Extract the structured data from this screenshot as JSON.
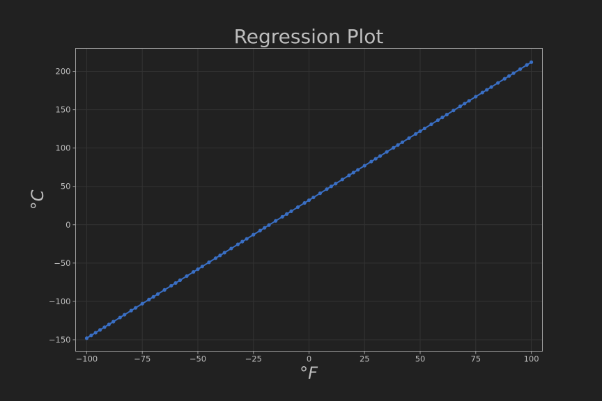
{
  "chart_data": {
    "type": "scatter",
    "title": "Regression Plot",
    "xlabel": "°F",
    "ylabel": "°C",
    "xlim": [
      -105,
      105
    ],
    "ylim": [
      -165,
      230
    ],
    "x_ticks": [
      -100,
      -75,
      -50,
      -25,
      0,
      25,
      50,
      75,
      100
    ],
    "x_tick_labels": [
      "−100",
      "−75",
      "−50",
      "−25",
      "0",
      "25",
      "50",
      "75",
      "100"
    ],
    "y_ticks": [
      -150,
      -100,
      -50,
      0,
      50,
      100,
      150,
      200
    ],
    "y_tick_labels": [
      "−150",
      "−100",
      "−50",
      "0",
      "50",
      "100",
      "150",
      "200"
    ],
    "grid": true,
    "colors": {
      "background": "#212121",
      "points": "#3a6fc4",
      "line": "#3a6fc4"
    },
    "series": [
      {
        "x": [
          -100,
          -98,
          -96,
          -94,
          -92,
          -90,
          -88,
          -85,
          -83,
          -80,
          -78,
          -75,
          -72,
          -70,
          -68,
          -65,
          -62,
          -60,
          -58,
          -55,
          -52,
          -50,
          -48,
          -45,
          -42,
          -40,
          -38,
          -35,
          -32,
          -30,
          -28,
          -25,
          -22,
          -20,
          -18,
          -15,
          -12,
          -10,
          -8,
          -5,
          -2,
          0,
          2,
          5,
          8,
          10,
          12,
          15,
          18,
          20,
          22,
          25,
          28,
          30,
          32,
          35,
          38,
          40,
          42,
          45,
          48,
          50,
          52,
          55,
          58,
          60,
          62,
          65,
          68,
          70,
          72,
          75,
          78,
          80,
          82,
          85,
          88,
          90,
          92,
          95,
          98,
          100
        ],
        "y": [
          -148,
          -144.4,
          -140.8,
          -137.2,
          -133.6,
          -130,
          -126.4,
          -121,
          -117.4,
          -112,
          -108.4,
          -103,
          -97.6,
          -94,
          -90.4,
          -85,
          -79.6,
          -76,
          -72.4,
          -67,
          -61.6,
          -58,
          -54.4,
          -49,
          -43.6,
          -40,
          -36.4,
          -31,
          -25.6,
          -22,
          -18.4,
          -13,
          -7.6,
          -4,
          -0.4,
          5,
          10.4,
          14,
          17.6,
          23,
          28.4,
          32,
          35.6,
          41,
          46.4,
          50,
          53.6,
          59,
          64.4,
          68,
          71.6,
          77,
          82.4,
          86,
          89.6,
          95,
          100.4,
          104,
          107.6,
          113,
          118.4,
          122,
          125.6,
          131,
          136.4,
          140,
          143.6,
          149,
          154.4,
          158,
          161.6,
          167,
          172.4,
          176,
          179.6,
          185,
          190.4,
          194,
          197.6,
          203,
          208.4,
          212
        ]
      }
    ],
    "regression_line": {
      "x": [
        -100,
        100
      ],
      "y": [
        -148,
        212
      ]
    }
  }
}
